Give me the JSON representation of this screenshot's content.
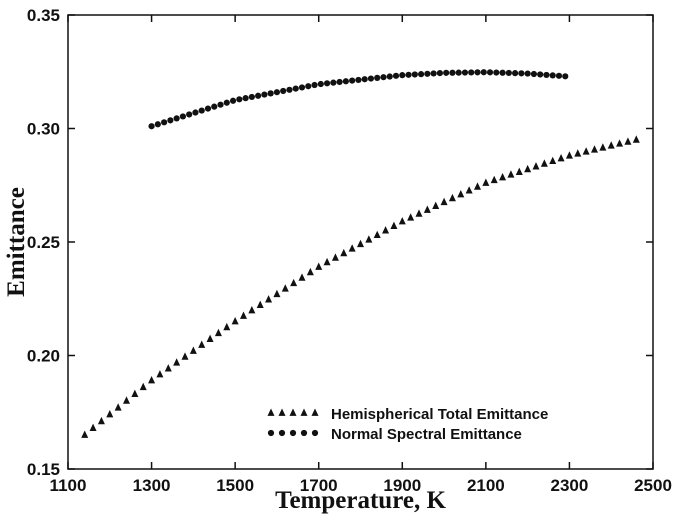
{
  "chart_data": {
    "type": "scatter",
    "title": "",
    "xlabel": "Temperature, K",
    "ylabel": "Emittance",
    "xlim": [
      1100,
      2500
    ],
    "ylim": [
      0.15,
      0.35
    ],
    "xticks": [
      1100,
      1300,
      1500,
      1700,
      1900,
      2100,
      2300,
      2500
    ],
    "xtick_labels": [
      "1100",
      "1300",
      "1500",
      "1700",
      "1900",
      "2100",
      "2300",
      "2500"
    ],
    "yticks": [
      0.15,
      0.2,
      0.25,
      0.3,
      0.35
    ],
    "ytick_labels": [
      "0.15",
      "0.20",
      "0.25",
      "0.30",
      "0.35"
    ],
    "grid": false,
    "legend_position": "bottom-right",
    "series": [
      {
        "name": "Hemispherical Total Emittance",
        "marker": "triangle",
        "color": "#111111",
        "x_start": 1140,
        "x_end": 2460,
        "x_step": 20,
        "points": [
          [
            1140,
            0.165
          ],
          [
            1300,
            0.189
          ],
          [
            1500,
            0.215
          ],
          [
            1700,
            0.239
          ],
          [
            1900,
            0.259
          ],
          [
            2100,
            0.276
          ],
          [
            2300,
            0.288
          ],
          [
            2460,
            0.295
          ]
        ]
      },
      {
        "name": "Normal Spectral Emittance",
        "marker": "circle",
        "color": "#111111",
        "x_start": 1300,
        "x_end": 2290,
        "x_step": 15,
        "points": [
          [
            1300,
            0.301
          ],
          [
            1500,
            0.3125
          ],
          [
            1700,
            0.3195
          ],
          [
            1900,
            0.3235
          ],
          [
            2000,
            0.3245
          ],
          [
            2100,
            0.3248
          ],
          [
            2200,
            0.3242
          ],
          [
            2290,
            0.323
          ]
        ]
      }
    ]
  }
}
